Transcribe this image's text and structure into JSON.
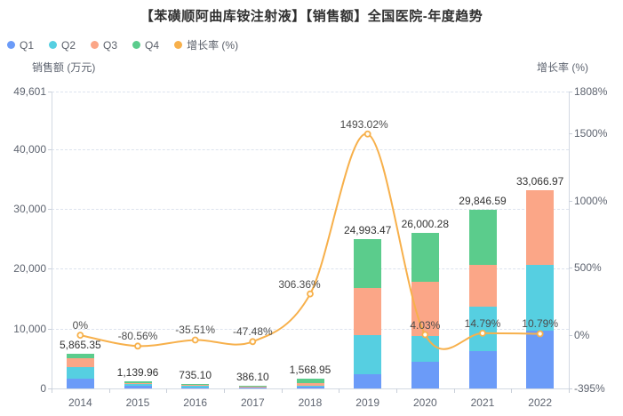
{
  "chart_data": {
    "type": "bar",
    "subtype": "stacked-bar-with-line-dual-axis",
    "title": "【苯磺顺阿曲库铵注射液】【销售额】全国医院-年度趋势",
    "categories": [
      "2014",
      "2015",
      "2016",
      "2017",
      "2018",
      "2019",
      "2020",
      "2021",
      "2022"
    ],
    "bar_series": [
      {
        "name": "Q1",
        "color": "#6b9bf8",
        "values": [
          1650,
          380,
          190,
          90,
          280,
          2400,
          4450,
          6240,
          9650
        ]
      },
      {
        "name": "Q2",
        "color": "#56cfe1",
        "values": [
          1950,
          430,
          280,
          140,
          180,
          6500,
          4300,
          7430,
          11000
        ]
      },
      {
        "name": "Q3",
        "color": "#fba687",
        "values": [
          1500,
          140,
          130,
          76.1,
          460,
          7900,
          9100,
          7000,
          12416.97
        ]
      },
      {
        "name": "Q4",
        "color": "#5bcc8c",
        "values": [
          765.35,
          189.96,
          135.1,
          80,
          648.95,
          8193.47,
          8150.28,
          9176.59,
          0
        ]
      }
    ],
    "totals": {
      "values": [
        5865.35,
        1139.96,
        735.1,
        386.1,
        1568.95,
        24993.47,
        26000.28,
        29846.59,
        33066.97
      ],
      "labels": [
        "5,865.35",
        "1,139.96",
        "735.10",
        "386.10",
        "1,568.95",
        "24,993.47",
        "26,000.28",
        "29,846.59",
        "33,066.97"
      ]
    },
    "line_series": {
      "name": "增长率 (%)",
      "color": "#f7b04b",
      "axis": "right",
      "values": [
        0,
        -80.56,
        -35.51,
        -47.48,
        306.36,
        1493.02,
        4.03,
        14.79,
        10.79
      ],
      "labels": [
        "0%",
        "-80.56%",
        "-35.51%",
        "-47.48%",
        "306.36%",
        "1493.02%",
        "4.03%",
        "14.79%",
        "10.79%"
      ]
    },
    "left_axis": {
      "title": "销售额 (万元)",
      "min": 0,
      "max": 49601,
      "tick_values": [
        0,
        10000,
        20000,
        30000,
        40000,
        49601
      ],
      "tick_labels": [
        "0",
        "10,000",
        "20,000",
        "30,000",
        "40,000",
        "49,601"
      ]
    },
    "right_axis": {
      "title": "增长率 (%)",
      "min": -395,
      "max": 1808,
      "tick_values": [
        -395,
        0,
        500,
        1000,
        1500,
        1808
      ],
      "tick_labels": [
        "-395%",
        "0%",
        "500%",
        "1000%",
        "1500%",
        "1808%"
      ]
    },
    "legend": [
      "Q1",
      "Q2",
      "Q3",
      "Q4",
      "增长率 (%)"
    ],
    "grid": true,
    "legend_position": "top-left"
  }
}
